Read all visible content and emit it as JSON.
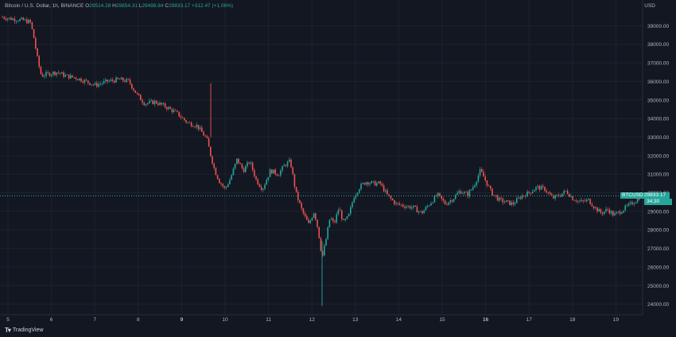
{
  "header": {
    "symbol": "Bitcoin / U.S. Dollar, 1h, BINANCE",
    "o_label": "O",
    "o_value": "29514.28",
    "h_label": "H",
    "h_value": "29854.31",
    "l_label": "L",
    "l_value": "29498.84",
    "c_label": "C",
    "c_value": "29833.17",
    "change": "+312.47 (+1.06%)"
  },
  "currency": "USD",
  "price_tag": {
    "symbol": "BTCUSD",
    "value": "29833.17",
    "countdown": "34:30"
  },
  "footer": {
    "brand": "TradingView"
  },
  "colors": {
    "up": "#26a69a",
    "down": "#ef5350",
    "background": "#131722",
    "grid": "#1e222d"
  },
  "chart_data": {
    "type": "candlestick",
    "y_ticks": [
      24000,
      25000,
      26000,
      27000,
      28000,
      29000,
      30000,
      31000,
      32000,
      33000,
      34000,
      35000,
      36000,
      37000,
      38000,
      39000
    ],
    "y_tick_labels": [
      "24000.00",
      "25000.00",
      "26000.00",
      "27000.00",
      "28000.00",
      "29000.00",
      "30000.00",
      "31000.00",
      "32000.00",
      "33000.00",
      "34000.00",
      "35000.00",
      "36000.00",
      "37000.00",
      "38000.00",
      "39000.00"
    ],
    "ylim": [
      23600,
      39700
    ],
    "x_ticks": [
      "5",
      "6",
      "7",
      "8",
      "9",
      "10",
      "11",
      "12",
      "13",
      "14",
      "15",
      "16",
      "17",
      "18",
      "19"
    ],
    "x_ticks_bold": [
      "9",
      "16"
    ],
    "last_close": 29833.17,
    "close_path": [
      [
        0,
        39500
      ],
      [
        10,
        39400
      ],
      [
        28,
        39300
      ],
      [
        38,
        39200
      ],
      [
        42,
        38500
      ],
      [
        48,
        37000
      ],
      [
        52,
        36300
      ],
      [
        60,
        36400
      ],
      [
        72,
        36500
      ],
      [
        82,
        36300
      ],
      [
        95,
        36200
      ],
      [
        108,
        36000
      ],
      [
        120,
        35800
      ],
      [
        135,
        36000
      ],
      [
        150,
        36100
      ],
      [
        162,
        36000
      ],
      [
        172,
        35300
      ],
      [
        182,
        34800
      ],
      [
        195,
        34900
      ],
      [
        210,
        34600
      ],
      [
        222,
        34300
      ],
      [
        235,
        33800
      ],
      [
        248,
        33600
      ],
      [
        260,
        32900
      ],
      [
        265,
        32000
      ],
      [
        270,
        31200
      ],
      [
        276,
        30600
      ],
      [
        283,
        30200
      ],
      [
        290,
        30800
      ],
      [
        298,
        31800
      ],
      [
        306,
        31200
      ],
      [
        314,
        31700
      ],
      [
        322,
        30700
      ],
      [
        330,
        30200
      ],
      [
        340,
        31200
      ],
      [
        350,
        31000
      ],
      [
        358,
        31500
      ],
      [
        365,
        31700
      ],
      [
        372,
        30000
      ],
      [
        380,
        29000
      ],
      [
        388,
        28300
      ],
      [
        395,
        29000
      ],
      [
        400,
        28000
      ],
      [
        405,
        26500
      ],
      [
        410,
        27500
      ],
      [
        415,
        28700
      ],
      [
        420,
        28300
      ],
      [
        426,
        29200
      ],
      [
        432,
        28400
      ],
      [
        438,
        28700
      ],
      [
        445,
        29800
      ],
      [
        452,
        30300
      ],
      [
        460,
        30600
      ],
      [
        470,
        30500
      ],
      [
        478,
        30500
      ],
      [
        488,
        29800
      ],
      [
        498,
        29400
      ],
      [
        508,
        29300
      ],
      [
        520,
        29200
      ],
      [
        530,
        28900
      ],
      [
        540,
        29400
      ],
      [
        550,
        29900
      ],
      [
        560,
        29400
      ],
      [
        570,
        29700
      ],
      [
        578,
        30100
      ],
      [
        588,
        29900
      ],
      [
        596,
        30400
      ],
      [
        604,
        31200
      ],
      [
        610,
        30700
      ],
      [
        618,
        30000
      ],
      [
        628,
        29600
      ],
      [
        636,
        29500
      ],
      [
        645,
        29400
      ],
      [
        655,
        29800
      ],
      [
        665,
        30000
      ],
      [
        675,
        30300
      ],
      [
        685,
        30200
      ],
      [
        695,
        29700
      ],
      [
        705,
        29900
      ],
      [
        712,
        30100
      ],
      [
        720,
        29700
      ],
      [
        730,
        29500
      ],
      [
        740,
        29600
      ],
      [
        748,
        29200
      ],
      [
        756,
        28900
      ],
      [
        764,
        29100
      ],
      [
        772,
        28800
      ],
      [
        780,
        29000
      ],
      [
        790,
        29300
      ],
      [
        800,
        29600
      ],
      [
        806,
        29833
      ]
    ],
    "spikes": [
      {
        "x": 265,
        "high": 35900,
        "low": 33000
      },
      {
        "x": 405,
        "high": 27400,
        "low": 23900
      }
    ]
  }
}
